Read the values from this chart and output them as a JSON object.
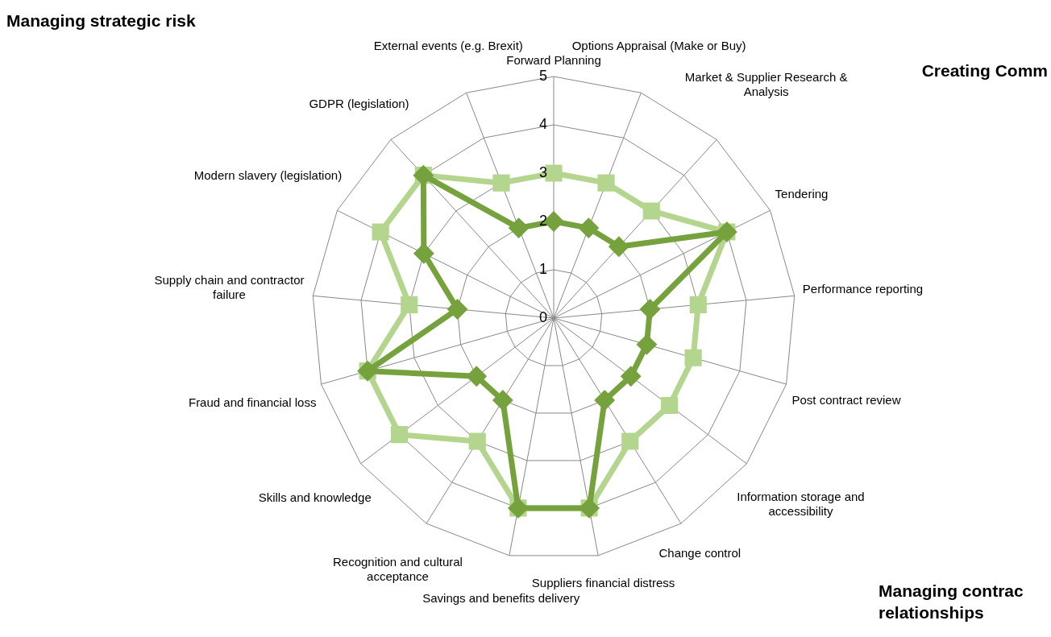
{
  "chart_data": {
    "type": "radar",
    "categories": [
      "Forward Planning",
      "Options Appraisal (Make or Buy)",
      "Market & Supplier Research & Analysis",
      "Tendering",
      "Performance reporting",
      "Post contract review",
      "Information storage and accessibility",
      "Change control",
      "Suppliers financial distress",
      "Savings and benefits delivery",
      "Recognition and cultural acceptance",
      "Skills and knowledge",
      "Fraud and financial loss",
      "Supply chain and contractor failure",
      "Modern slavery (legislation)",
      "GDPR (legislation)",
      "External events (e.g. Brexit)"
    ],
    "series": [
      {
        "color": "#b3d58e",
        "marker": "square",
        "values": [
          3,
          3,
          3,
          4,
          3,
          3,
          3,
          3,
          4,
          4,
          3,
          4,
          4,
          3,
          4,
          4,
          3
        ]
      },
      {
        "color": "#76a23e",
        "marker": "diamond",
        "values": [
          2,
          2,
          2,
          4,
          2,
          2,
          2,
          2,
          4,
          4,
          2,
          2,
          4,
          2,
          3,
          4,
          2
        ]
      }
    ],
    "ylim": [
      0,
      5
    ],
    "yticks": [
      0,
      1,
      2,
      3,
      4,
      5
    ],
    "grid": true,
    "legend": false,
    "annotations": [
      "Managing strategic risk",
      "Creating Comm",
      "Managing contrac relationships"
    ]
  }
}
